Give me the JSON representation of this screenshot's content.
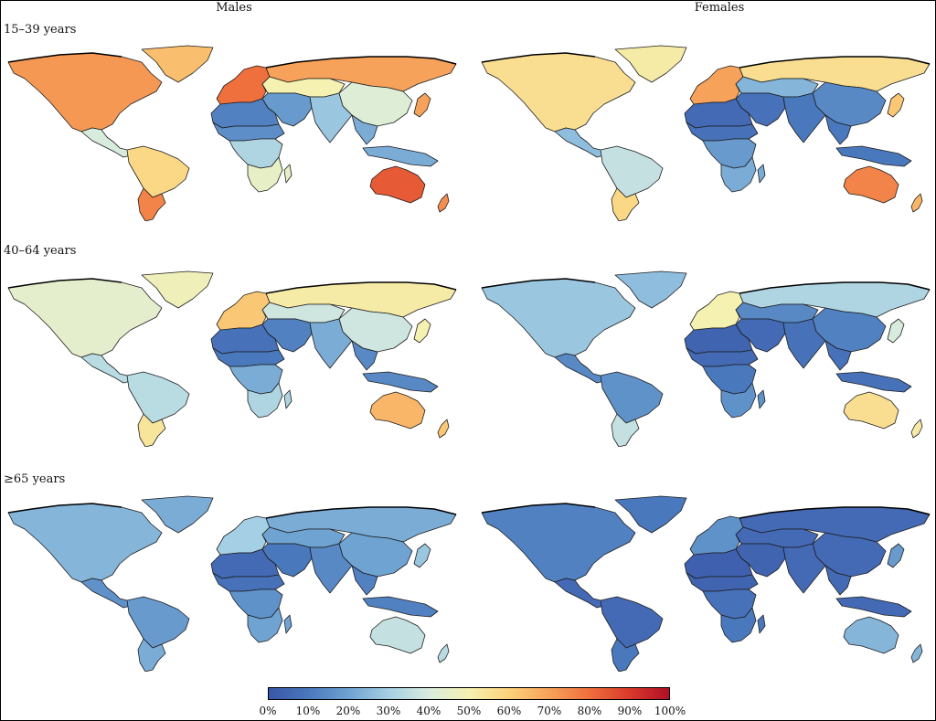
{
  "columns": [
    "Males",
    "Females"
  ],
  "rows": [
    "15–39 years",
    "40–64 years",
    "≥65 years"
  ],
  "legend": {
    "ticks": [
      "0%",
      "10%",
      "20%",
      "30%",
      "40%",
      "50%",
      "60%",
      "70%",
      "80%",
      "90%",
      "100%"
    ],
    "colors": [
      "#3a56a8",
      "#4a78bd",
      "#6fa3d2",
      "#a5cfe4",
      "#d8ecde",
      "#f5f1b0",
      "#fbd27c",
      "#f7a25a",
      "#ef6f3d",
      "#d93a2b",
      "#b10f26"
    ]
  },
  "panels": [
    {
      "sex": "Males",
      "age": "15–39 years",
      "levels": {
        "north_america": 72,
        "greenland": 64,
        "central_america": 40,
        "south_america_north": 58,
        "south_america_south": 76,
        "europe": 80,
        "russia": 70,
        "central_asia": 50,
        "north_africa": 12,
        "sahel": 15,
        "central_africa": 32,
        "southern_africa": 45,
        "middle_east": 18,
        "south_asia": 28,
        "china": 42,
        "southeast_asia": 22,
        "japan": 70,
        "australia": 84,
        "new_zealand": 74
      }
    },
    {
      "sex": "Females",
      "age": "15–39 years",
      "levels": {
        "north_america": 56,
        "greenland": 52,
        "central_america": 26,
        "south_america_north": 36,
        "south_america_south": 58,
        "europe": 70,
        "russia": 56,
        "central_asia": 24,
        "north_africa": 6,
        "sahel": 8,
        "central_africa": 18,
        "southern_africa": 22,
        "middle_east": 8,
        "south_asia": 10,
        "china": 14,
        "southeast_asia": 10,
        "japan": 62,
        "australia": 76,
        "new_zealand": 66
      }
    },
    {
      "sex": "Males",
      "age": "40–64 years",
      "levels": {
        "north_america": 44,
        "greenland": 48,
        "central_america": 34,
        "south_america_north": 34,
        "south_america_south": 54,
        "europe": 62,
        "russia": 52,
        "central_asia": 38,
        "north_africa": 8,
        "sahel": 10,
        "central_africa": 22,
        "southern_africa": 32,
        "middle_east": 12,
        "south_asia": 22,
        "china": 38,
        "southeast_asia": 14,
        "japan": 50,
        "australia": 66,
        "new_zealand": 62
      }
    },
    {
      "sex": "Females",
      "age": "40–64 years",
      "levels": {
        "north_america": 28,
        "greenland": 26,
        "central_america": 14,
        "south_america_north": 16,
        "south_america_south": 36,
        "europe": 50,
        "russia": 32,
        "central_asia": 14,
        "north_africa": 4,
        "sahel": 6,
        "central_africa": 10,
        "southern_africa": 16,
        "middle_east": 6,
        "south_asia": 8,
        "china": 12,
        "southeast_asia": 8,
        "japan": 40,
        "australia": 56,
        "new_zealand": 52
      }
    },
    {
      "sex": "Males",
      "age": "≥65 years",
      "levels": {
        "north_america": 24,
        "greenland": 22,
        "central_america": 16,
        "south_america_north": 18,
        "south_america_south": 22,
        "europe": 30,
        "russia": 22,
        "central_asia": 20,
        "north_africa": 6,
        "sahel": 8,
        "central_africa": 16,
        "southern_africa": 20,
        "middle_east": 10,
        "south_asia": 14,
        "china": 20,
        "southeast_asia": 12,
        "japan": 28,
        "australia": 36,
        "new_zealand": 34
      }
    },
    {
      "sex": "Females",
      "age": "≥65 years",
      "levels": {
        "north_america": 12,
        "greenland": 10,
        "central_america": 6,
        "south_america_north": 6,
        "south_america_south": 10,
        "europe": 16,
        "russia": 6,
        "central_asia": 6,
        "north_africa": 3,
        "sahel": 4,
        "central_africa": 8,
        "southern_africa": 10,
        "middle_east": 4,
        "south_asia": 6,
        "china": 6,
        "southeast_asia": 6,
        "japan": 18,
        "australia": 24,
        "new_zealand": 24
      }
    }
  ]
}
